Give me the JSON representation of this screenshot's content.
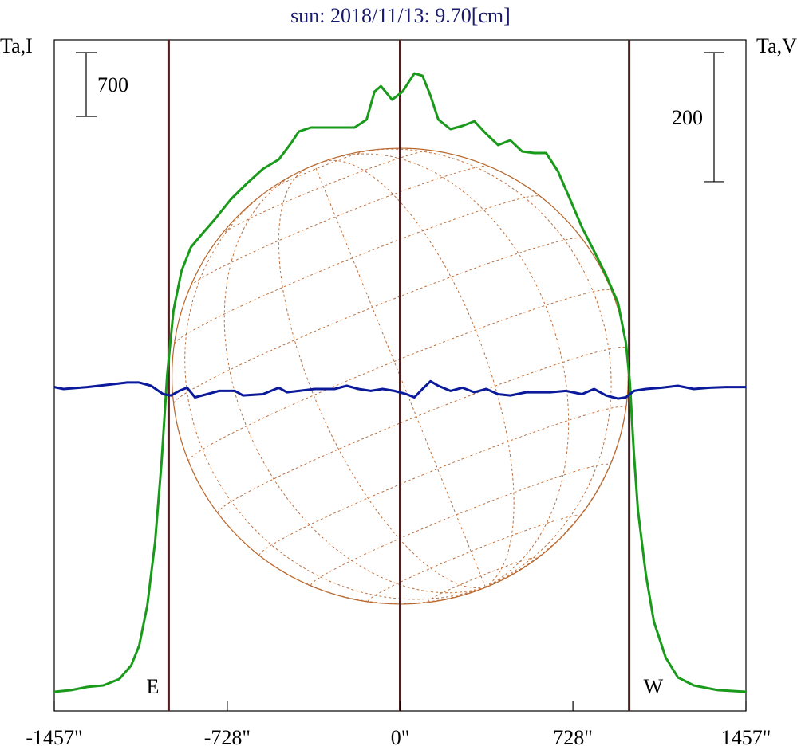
{
  "chart_data": {
    "type": "line",
    "title": "sun: 2018/11/13: 9.70[cm]",
    "ylabel": "Ta,I",
    "y2label": "Ta,V",
    "xlim": [
      -1457,
      1457
    ],
    "xticks": [
      {
        "value": -1457,
        "label": "-1457\""
      },
      {
        "value": -728,
        "label": "-728\""
      },
      {
        "value": 0,
        "label": "0\""
      },
      {
        "value": 728,
        "label": "728\""
      },
      {
        "value": 1457,
        "label": "1457\""
      }
    ],
    "ylim": [
      0,
      7368
    ],
    "y2lim": [
      -500,
      540
    ],
    "disk_radius": 961,
    "vlines": [
      {
        "value": -975,
        "label": "E"
      },
      {
        "value": 0
      },
      {
        "value": 965,
        "label": "W"
      }
    ],
    "scale_bars": [
      {
        "value": 700,
        "axis": "y"
      },
      {
        "value": 200,
        "axis": "y2"
      }
    ],
    "series": [
      {
        "color": "#1a9a1a",
        "axis": "y",
        "x": [
          -1457,
          -1385,
          -1318,
          -1250,
          -1183,
          -1133,
          -1099,
          -1065,
          -1032,
          -1005,
          -981,
          -955,
          -921,
          -881,
          -830,
          -780,
          -713,
          -645,
          -578,
          -511,
          -460,
          -427,
          -376,
          -276,
          -192,
          -141,
          -108,
          -81,
          -34,
          10,
          60,
          94,
          128,
          161,
          212,
          262,
          313,
          363,
          413,
          464,
          514,
          565,
          615,
          665,
          716,
          766,
          817,
          867,
          918,
          951,
          968,
          985,
          1002,
          1035,
          1069,
          1119,
          1170,
          1237,
          1338,
          1457
        ],
        "values": [
          210,
          228,
          263,
          280,
          350,
          499,
          718,
          1155,
          1855,
          2730,
          3693,
          4393,
          4830,
          5093,
          5250,
          5399,
          5618,
          5793,
          5950,
          6055,
          6230,
          6361,
          6405,
          6405,
          6405,
          6493,
          6799,
          6860,
          6711,
          6799,
          7000,
          6974,
          6755,
          6493,
          6388,
          6423,
          6475,
          6335,
          6213,
          6265,
          6143,
          6125,
          6125,
          5924,
          5618,
          5311,
          5049,
          4786,
          4480,
          4043,
          3605,
          2818,
          2205,
          1505,
          980,
          586,
          368,
          280,
          228,
          210
        ]
      },
      {
        "color": "#0a1a9a",
        "axis": "y2",
        "x": [
          -1457,
          -1418,
          -1318,
          -1217,
          -1149,
          -1099,
          -1049,
          -998,
          -965,
          -931,
          -897,
          -864,
          -813,
          -763,
          -696,
          -662,
          -578,
          -511,
          -477,
          -427,
          -360,
          -276,
          -225,
          -175,
          -124,
          -74,
          -24,
          27,
          60,
          94,
          128,
          161,
          212,
          262,
          313,
          363,
          413,
          464,
          531,
          632,
          699,
          766,
          817,
          867,
          918,
          951,
          985,
          1035,
          1102,
          1170,
          1237,
          1304,
          1371,
          1457
        ],
        "values": [
          2,
          -1,
          2,
          6,
          9,
          9,
          4,
          -9,
          -11,
          -4,
          1,
          -14,
          -9,
          -4,
          -4,
          -11,
          -9,
          1,
          -6,
          -4,
          -1,
          -1,
          4,
          -1,
          -4,
          -1,
          -4,
          -9,
          -14,
          -1,
          11,
          4,
          -4,
          1,
          -6,
          -1,
          -9,
          -11,
          -6,
          -6,
          -4,
          -9,
          -1,
          -11,
          -16,
          -14,
          -4,
          -1,
          1,
          4,
          -1,
          1,
          2,
          2
        ]
      }
    ]
  }
}
